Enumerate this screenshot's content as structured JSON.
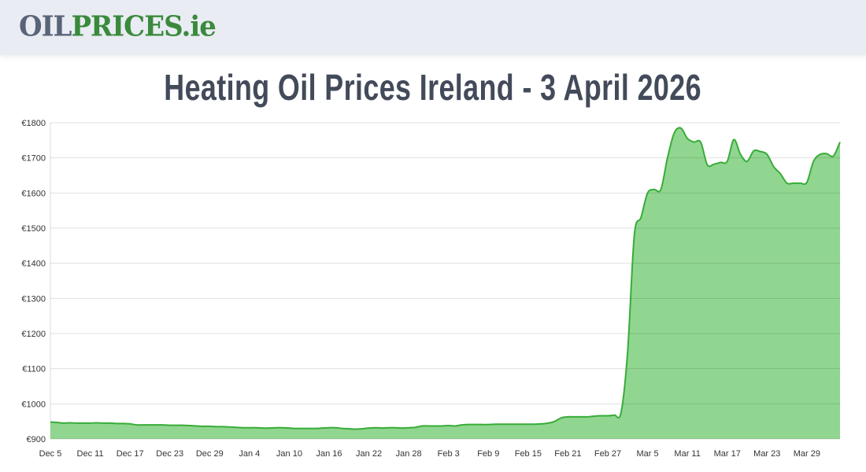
{
  "header": {
    "logo_part1": "OIL",
    "logo_part2": "PRICES.ie"
  },
  "page_title": "Heating Oil Prices Ireland - 3 April 2026",
  "colors": {
    "line": "#38ac38",
    "fill": "#90d690",
    "header_bg": "#e9ecf3",
    "title": "#434a5a"
  },
  "chart_data": {
    "type": "area",
    "title": "",
    "xlabel": "",
    "ylabel": "",
    "ylim": [
      900,
      1800
    ],
    "grid": true,
    "y_ticks": [
      "€900",
      "€1000",
      "€1100",
      "€1200",
      "€1300",
      "€1400",
      "€1500",
      "€1600",
      "€1700",
      "€1800"
    ],
    "y_tick_values": [
      900,
      1000,
      1100,
      1200,
      1300,
      1400,
      1500,
      1600,
      1700,
      1800
    ],
    "x_ticks": [
      "Dec 5",
      "Dec 11",
      "Dec 17",
      "Dec 23",
      "Dec 29",
      "Jan 4",
      "Jan 10",
      "Jan 16",
      "Jan 22",
      "Jan 28",
      "Feb 3",
      "Feb 9",
      "Feb 15",
      "Feb 21",
      "Feb 27",
      "Mar 5",
      "Mar 11",
      "Mar 17",
      "Mar 23",
      "Mar 29"
    ],
    "x_start": "Dec 5",
    "x_end": "Apr 3",
    "values": [
      948,
      947,
      945,
      946,
      945,
      945,
      945,
      946,
      945,
      945,
      944,
      944,
      943,
      940,
      940,
      940,
      940,
      940,
      939,
      939,
      939,
      938,
      937,
      936,
      936,
      935,
      935,
      934,
      933,
      932,
      932,
      932,
      931,
      931,
      932,
      932,
      931,
      930,
      930,
      930,
      930,
      931,
      932,
      932,
      930,
      929,
      928,
      929,
      931,
      932,
      931,
      932,
      932,
      931,
      932,
      933,
      937,
      937,
      937,
      937,
      938,
      937,
      940,
      941,
      941,
      941,
      941,
      942,
      942,
      942,
      942,
      942,
      942,
      942,
      943,
      945,
      950,
      960,
      963,
      963,
      963,
      963,
      965,
      966,
      966,
      968,
      975,
      1150,
      1480,
      1530,
      1600,
      1610,
      1610,
      1700,
      1770,
      1785,
      1755,
      1745,
      1745,
      1680,
      1682,
      1687,
      1690,
      1752,
      1710,
      1690,
      1720,
      1718,
      1710,
      1675,
      1655,
      1628,
      1628,
      1628,
      1630,
      1690,
      1710,
      1712,
      1705,
      1745
    ]
  }
}
